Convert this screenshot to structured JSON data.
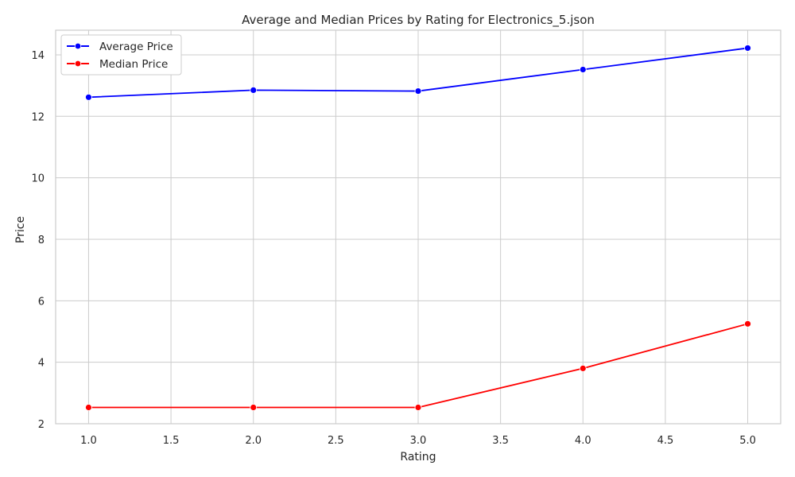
{
  "chart_data": {
    "type": "line",
    "title": "Average and Median Prices by Rating for Electronics_5.json",
    "xlabel": "Rating",
    "ylabel": "Price",
    "x": [
      1.0,
      2.0,
      3.0,
      4.0,
      5.0
    ],
    "xlim": [
      0.8,
      5.2
    ],
    "ylim": [
      2.0,
      14.8
    ],
    "xticks": [
      "1.0",
      "1.5",
      "2.0",
      "2.5",
      "3.0",
      "3.5",
      "4.0",
      "4.5",
      "5.0"
    ],
    "yticks": [
      "2",
      "4",
      "6",
      "8",
      "10",
      "12",
      "14"
    ],
    "grid": true,
    "legend_position": "upper-left",
    "series": [
      {
        "name": "Average Price",
        "color": "#0000ff",
        "values": [
          12.62,
          12.85,
          12.82,
          13.52,
          14.22
        ]
      },
      {
        "name": "Median Price",
        "color": "#ff0000",
        "values": [
          2.53,
          2.53,
          2.53,
          3.8,
          5.25
        ]
      }
    ]
  }
}
